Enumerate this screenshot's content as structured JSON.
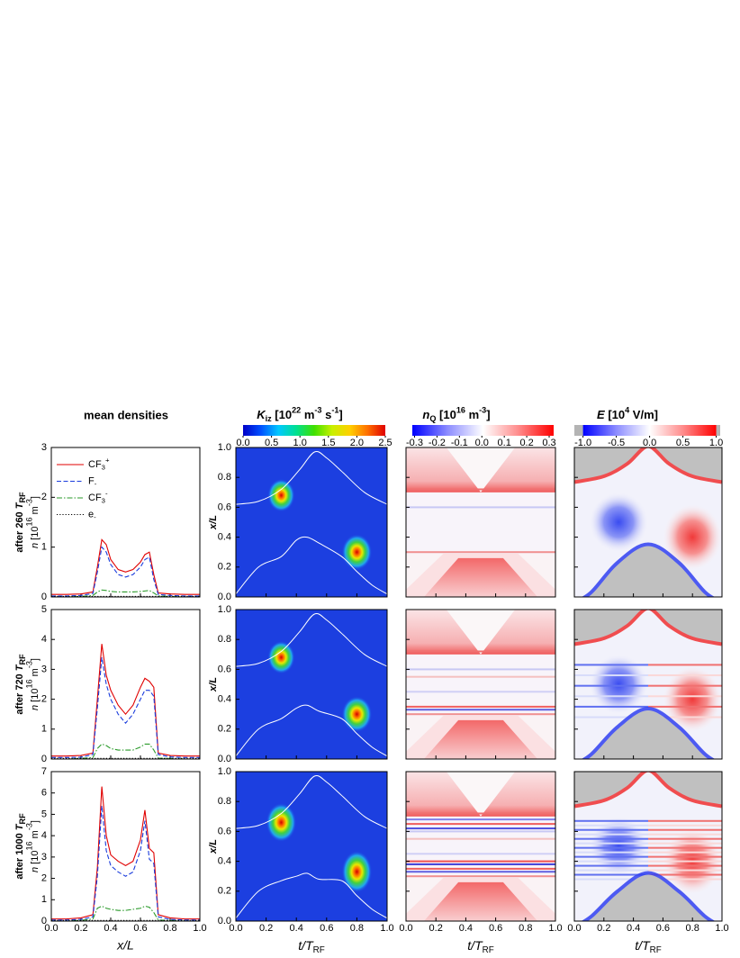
{
  "figure": {
    "column_title": "mean densities",
    "row_labels": [
      [
        "after 260 ",
        "T",
        "RF"
      ],
      [
        "after 720 ",
        "T",
        "RF"
      ],
      [
        "after 1000 ",
        "T",
        "RF"
      ]
    ],
    "density_ylabel": [
      "n",
      " [10",
      "16",
      " m",
      "-3",
      "]"
    ],
    "density_xlabel": "x/L",
    "time_xlabel": [
      "t/T",
      "RF"
    ],
    "heatmap_ylabel": "x/L",
    "xlim": [
      0,
      1
    ],
    "xticks": [
      {
        "value": 0,
        "label": "0.0"
      },
      {
        "value": 0.2,
        "label": "0.2"
      },
      {
        "value": 0.4,
        "label": "0.4"
      },
      {
        "value": 0.6,
        "label": "0.6"
      },
      {
        "value": 0.8,
        "label": "0.8"
      },
      {
        "value": 1,
        "label": "1.0"
      }
    ],
    "heatmap_ylim": [
      0,
      1
    ],
    "heatmap_yticks": [
      {
        "value": 0,
        "label": "0.0"
      },
      {
        "value": 0.2,
        "label": "0.2"
      },
      {
        "value": 0.4,
        "label": "0.4"
      },
      {
        "value": 0.6,
        "label": "0.6"
      },
      {
        "value": 0.8,
        "label": "0.8"
      },
      {
        "value": 1,
        "label": "1.0"
      }
    ],
    "colorbars": [
      {
        "title": [
          "K",
          "iz",
          " [10",
          "22",
          " m",
          "-3",
          " s",
          "-1",
          "]"
        ],
        "clim": [
          0,
          2.5
        ],
        "color_range": [
          0,
          2.5
        ],
        "colors": [
          "#0000c8",
          "#0050ff",
          "#00c8ff",
          "#00e090",
          "#40e000",
          "#c8f000",
          "#ffd000",
          "#ff7000",
          "#e00000"
        ],
        "ticks": [
          {
            "value": 0,
            "label": "0.0"
          },
          {
            "value": 0.5,
            "label": "0.5"
          },
          {
            "value": 1,
            "label": "1.0"
          },
          {
            "value": 1.5,
            "label": "1.5"
          },
          {
            "value": 2,
            "label": "2.0"
          },
          {
            "value": 2.5,
            "label": "2.5"
          }
        ]
      },
      {
        "title": [
          "n",
          "Q",
          " [10",
          "16",
          " m",
          "-3",
          "]"
        ],
        "clim": [
          -0.31,
          0.32
        ],
        "color_range": [
          -0.31,
          0.32
        ],
        "colors": [
          "#0000ff",
          "#8c8cff",
          "#ffffff",
          "#ff8c8c",
          "#ff0000"
        ],
        "ticks": [
          {
            "value": -0.3,
            "label": "-0.3"
          },
          {
            "value": -0.2,
            "label": "-0.2"
          },
          {
            "value": -0.1,
            "label": "-0.1"
          },
          {
            "value": 0,
            "label": "0.0"
          },
          {
            "value": 0.1,
            "label": "0.1"
          },
          {
            "value": 0.2,
            "label": "0.2"
          },
          {
            "value": 0.3,
            "label": "0.3"
          }
        ]
      },
      {
        "title": [
          "E",
          " [10",
          "4",
          " V/m]"
        ],
        "clim": [
          -1.13,
          1.06
        ],
        "color_range": [
          -1,
          1
        ],
        "extend_color": "#b4b4b4",
        "colors": [
          "#0000ff",
          "#8c8cff",
          "#ffffff",
          "#ff8c8c",
          "#ff0000"
        ],
        "ticks": [
          {
            "value": -1,
            "label": "-1.0"
          },
          {
            "value": -0.5,
            "label": "-0.5"
          },
          {
            "value": 0,
            "label": "0.0"
          },
          {
            "value": 0.5,
            "label": "0.5"
          },
          {
            "value": 1,
            "label": "1.0"
          }
        ]
      }
    ]
  },
  "chart_data": [
    {
      "type": "line",
      "xlim": [
        0,
        1
      ],
      "ylim": [
        0,
        3
      ],
      "yticks": [
        0,
        1,
        2,
        3
      ],
      "x": [
        0,
        0.1,
        0.2,
        0.28,
        0.31,
        0.34,
        0.37,
        0.4,
        0.45,
        0.5,
        0.55,
        0.6,
        0.63,
        0.66,
        0.69,
        0.72,
        0.8,
        0.9,
        1
      ],
      "series": [
        {
          "name": [
            "CF",
            "3",
            "+"
          ],
          "color": "#e00000",
          "linestyle": "solid",
          "values": [
            0.05,
            0.05,
            0.06,
            0.1,
            0.6,
            1.15,
            1.05,
            0.75,
            0.55,
            0.5,
            0.55,
            0.7,
            0.85,
            0.9,
            0.45,
            0.08,
            0.06,
            0.05,
            0.05
          ]
        },
        {
          "name": [
            "F",
            "-"
          ],
          "color": "#1a3cdc",
          "linestyle": "dashed",
          "values": [
            0.02,
            0.02,
            0.03,
            0.07,
            0.5,
            1,
            0.9,
            0.65,
            0.45,
            0.4,
            0.45,
            0.6,
            0.75,
            0.8,
            0.35,
            0.05,
            0.03,
            0.02,
            0.02
          ]
        },
        {
          "name": [
            "CF",
            "3",
            "-"
          ],
          "color": "#2a9a2a",
          "linestyle": "dashdot",
          "values": [
            0,
            0,
            0.01,
            0.03,
            0.1,
            0.14,
            0.13,
            0.11,
            0.1,
            0.1,
            0.1,
            0.11,
            0.12,
            0.13,
            0.08,
            0.02,
            0.01,
            0,
            0
          ]
        },
        {
          "name": [
            "e",
            "-"
          ],
          "color": "#000000",
          "linestyle": "dotted",
          "values": [
            0.01,
            0.01,
            0.01,
            0.01,
            0.01,
            0.01,
            0.01,
            0.01,
            0.01,
            0.01,
            0.01,
            0.01,
            0.01,
            0.01,
            0.01,
            0.01,
            0.01,
            0.01,
            0.01
          ]
        }
      ]
    },
    {
      "type": "line",
      "xlim": [
        0,
        1
      ],
      "ylim": [
        0,
        5
      ],
      "yticks": [
        0,
        1,
        2,
        3,
        4,
        5
      ],
      "x": [
        0,
        0.1,
        0.2,
        0.28,
        0.31,
        0.34,
        0.37,
        0.4,
        0.45,
        0.5,
        0.55,
        0.6,
        0.63,
        0.66,
        0.69,
        0.72,
        0.8,
        0.9,
        1
      ],
      "series": [
        {
          "color": "#e00000",
          "linestyle": "solid",
          "values": [
            0.1,
            0.1,
            0.12,
            0.2,
            2,
            3.85,
            2.8,
            2.3,
            1.8,
            1.5,
            1.8,
            2.4,
            2.7,
            2.6,
            2.4,
            0.2,
            0.12,
            0.1,
            0.1
          ]
        },
        {
          "color": "#1a3cdc",
          "linestyle": "dashed",
          "values": [
            0.05,
            0.05,
            0.06,
            0.15,
            1.7,
            3.4,
            2.5,
            2,
            1.5,
            1.2,
            1.5,
            2,
            2.3,
            2.3,
            2.1,
            0.15,
            0.07,
            0.05,
            0.05
          ]
        },
        {
          "color": "#2a9a2a",
          "linestyle": "dashdot",
          "values": [
            0,
            0,
            0.02,
            0.05,
            0.35,
            0.5,
            0.45,
            0.35,
            0.3,
            0.3,
            0.3,
            0.4,
            0.5,
            0.5,
            0.3,
            0.03,
            0.02,
            0,
            0
          ]
        },
        {
          "color": "#000000",
          "linestyle": "dotted",
          "values": [
            0.02,
            0.02,
            0.02,
            0.02,
            0.02,
            0.02,
            0.02,
            0.02,
            0.02,
            0.02,
            0.02,
            0.02,
            0.02,
            0.02,
            0.02,
            0.02,
            0.02,
            0.02,
            0.02
          ]
        }
      ]
    },
    {
      "type": "line",
      "xlim": [
        0,
        1
      ],
      "ylim": [
        0,
        7
      ],
      "yticks": [
        0,
        1,
        2,
        3,
        4,
        5,
        6,
        7
      ],
      "x": [
        0,
        0.1,
        0.2,
        0.28,
        0.31,
        0.34,
        0.37,
        0.4,
        0.45,
        0.5,
        0.55,
        0.6,
        0.63,
        0.66,
        0.69,
        0.72,
        0.8,
        0.9,
        1
      ],
      "series": [
        {
          "color": "#e00000",
          "linestyle": "solid",
          "values": [
            0.1,
            0.1,
            0.15,
            0.3,
            2.5,
            6.3,
            4,
            3.1,
            2.8,
            2.6,
            2.8,
            3.8,
            5.2,
            3.4,
            3.2,
            0.3,
            0.15,
            0.1,
            0.1
          ]
        },
        {
          "color": "#1a3cdc",
          "linestyle": "dashed",
          "values": [
            0.05,
            0.05,
            0.08,
            0.2,
            2.1,
            5.4,
            3.3,
            2.6,
            2.3,
            2.1,
            2.3,
            3.3,
            4.7,
            2.9,
            2.7,
            0.2,
            0.08,
            0.05,
            0.05
          ]
        },
        {
          "color": "#2a9a2a",
          "linestyle": "dashdot",
          "values": [
            0,
            0,
            0.03,
            0.1,
            0.6,
            0.7,
            0.6,
            0.55,
            0.5,
            0.5,
            0.55,
            0.6,
            0.7,
            0.65,
            0.4,
            0.05,
            0.03,
            0,
            0
          ]
        },
        {
          "color": "#000000",
          "linestyle": "dotted",
          "values": [
            0.03,
            0.03,
            0.03,
            0.03,
            0.03,
            0.03,
            0.03,
            0.03,
            0.03,
            0.03,
            0.03,
            0.03,
            0.03,
            0.03,
            0.03,
            0.03,
            0.03,
            0.03,
            0.03
          ]
        }
      ]
    }
  ]
}
